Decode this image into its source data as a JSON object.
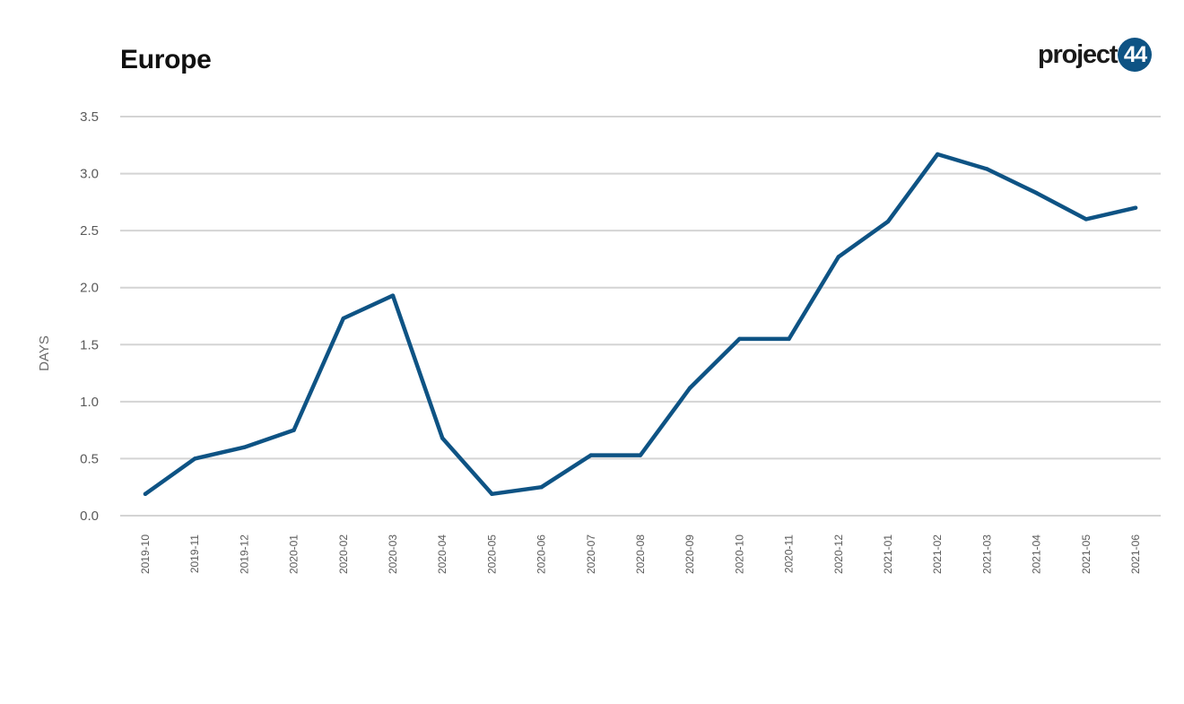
{
  "header": {
    "title": "Europe",
    "logo_text": "project",
    "logo_badge": "44"
  },
  "colors": {
    "series": "#0e5384",
    "grid": "#d4d4d4",
    "logo_badge": "#0e5384"
  },
  "chart_data": {
    "type": "line",
    "title": "Europe",
    "xlabel": "",
    "ylabel": "DAYS",
    "ylim": [
      0,
      3.5
    ],
    "yticks": [
      "0.0",
      "0.5",
      "1.0",
      "1.5",
      "2.0",
      "2.5",
      "3.0",
      "3.5"
    ],
    "grid": true,
    "x": [
      "2019-10",
      "2019-11",
      "2019-12",
      "2020-01",
      "2020-02",
      "2020-03",
      "2020-04",
      "2020-05",
      "2020-06",
      "2020-07",
      "2020-08",
      "2020-09",
      "2020-10",
      "2020-11",
      "2020-12",
      "2021-01",
      "2021-02",
      "2021-03",
      "2021-04",
      "2021-05",
      "2021-06"
    ],
    "series": [
      {
        "values": [
          0.19,
          0.5,
          0.6,
          0.75,
          1.73,
          1.93,
          0.68,
          0.19,
          0.25,
          0.53,
          0.53,
          1.12,
          1.55,
          1.55,
          2.27,
          2.58,
          3.17,
          3.04,
          2.83,
          2.6,
          2.7
        ]
      }
    ]
  }
}
